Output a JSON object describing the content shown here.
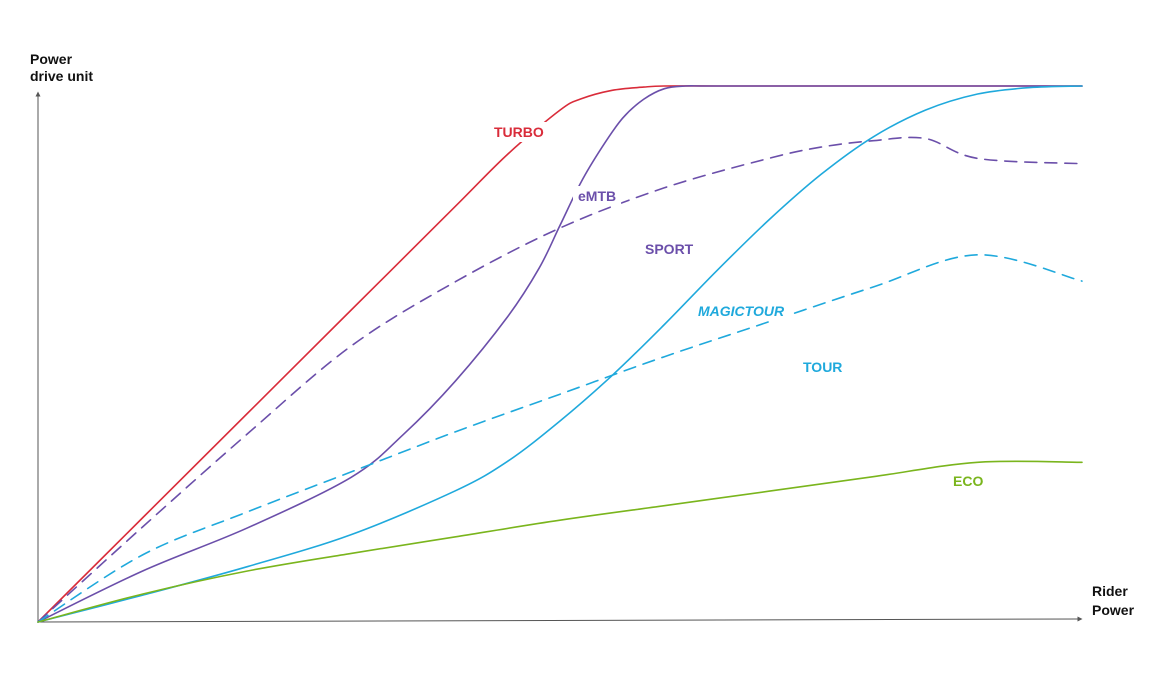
{
  "chart_data": {
    "type": "line",
    "xlabel": [
      "Rider",
      "Power"
    ],
    "ylabel": [
      "Power",
      "drive unit"
    ],
    "xlim": [
      0,
      100
    ],
    "ylim": [
      0,
      100
    ],
    "grid": false,
    "legend": "inline labels",
    "series": [
      {
        "name": "TURBO",
        "label_parts": [
          {
            "text": "TURBO",
            "italic": false
          }
        ],
        "color": "#d92c3a",
        "style": "solid",
        "x": [
          0,
          10,
          20,
          30,
          40,
          45,
          50,
          52,
          55,
          58,
          60,
          65,
          70,
          80,
          90,
          100
        ],
        "y": [
          0,
          19.4,
          38.8,
          58.2,
          77.6,
          87.3,
          95.5,
          97.6,
          99.2,
          99.8,
          100,
          100,
          100,
          100,
          100,
          100
        ]
      },
      {
        "name": "eMTB",
        "label_parts": [
          {
            "text": "eMTB",
            "italic": false
          }
        ],
        "color": "#6b4faa",
        "style": "solid",
        "x": [
          0,
          10,
          20,
          30,
          35,
          40,
          45,
          48,
          50,
          52,
          54,
          56,
          58,
          60,
          62,
          64,
          70,
          80,
          90,
          100
        ],
        "y": [
          0,
          9.5,
          17.5,
          27,
          35,
          45,
          57,
          66,
          74,
          82,
          88.5,
          94,
          97.5,
          99.5,
          100,
          100,
          100,
          100,
          100,
          100
        ]
      },
      {
        "name": "SPORT",
        "label_parts": [
          {
            "text": "SPORT",
            "italic": false
          }
        ],
        "color": "#6b4faa",
        "style": "dashed",
        "x": [
          0,
          10,
          20,
          30,
          40,
          50,
          60,
          70,
          75,
          80,
          85,
          90,
          100
        ],
        "y": [
          0,
          17.7,
          35,
          51.5,
          63.5,
          73.5,
          81,
          86.5,
          88.6,
          89.8,
          90.2,
          86.5,
          85.5
        ]
      },
      {
        "name": "MAGICTOUR",
        "label_parts": [
          {
            "text": "MAGIC",
            "italic": true
          },
          {
            "text": "TOUR",
            "italic": true,
            "bold": true
          }
        ],
        "color": "#1fa9dc",
        "style": "solid",
        "x": [
          0,
          10,
          20,
          30,
          40,
          45,
          50,
          55,
          60,
          65,
          70,
          75,
          80,
          85,
          90,
          95,
          100
        ],
        "y": [
          0,
          5,
          10.3,
          16.3,
          24.5,
          30,
          37.5,
          46,
          55.5,
          65.5,
          75,
          83.5,
          90.5,
          95.5,
          98.5,
          99.7,
          100
        ]
      },
      {
        "name": "TOUR",
        "label_parts": [
          {
            "text": "TOUR",
            "italic": false
          }
        ],
        "color": "#1fa9dc",
        "style": "dashed",
        "x": [
          0,
          10,
          20,
          30,
          40,
          50,
          60,
          70,
          80,
          90,
          100
        ],
        "y": [
          0,
          12.5,
          20.5,
          28,
          35.5,
          42.5,
          49.5,
          56,
          62.5,
          68.5,
          63.6
        ]
      },
      {
        "name": "ECO",
        "label_parts": [
          {
            "text": "ECO",
            "italic": false
          }
        ],
        "color": "#7ab51d",
        "style": "solid",
        "x": [
          0,
          10,
          20,
          30,
          40,
          50,
          60,
          70,
          80,
          90,
          100
        ],
        "y": [
          0,
          5.2,
          9.5,
          12.8,
          15.9,
          19,
          21.7,
          24.4,
          27.1,
          29.8,
          29.8
        ]
      }
    ]
  }
}
